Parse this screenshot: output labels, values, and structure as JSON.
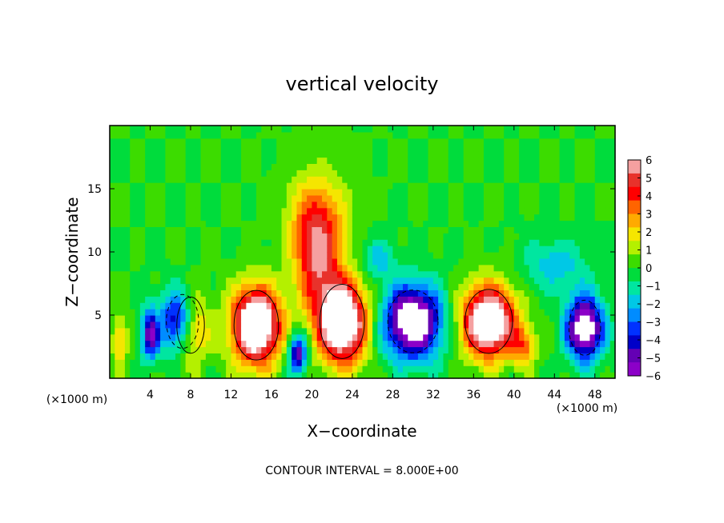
{
  "chart_data": {
    "type": "heatmap",
    "title": "vertical velocity",
    "xlabel": "X−coordinate",
    "ylabel": "Z−coordinate",
    "x_unit_left": "(×1000 m)",
    "x_unit_right": "(×1000 m)",
    "footer": "CONTOUR INTERVAL = 8.000E+00",
    "xlim": [
      0,
      50
    ],
    "ylim": [
      0,
      20
    ],
    "xticks": [
      4,
      8,
      12,
      16,
      20,
      24,
      28,
      32,
      36,
      40,
      44,
      48
    ],
    "yticks": [
      5,
      10,
      15
    ],
    "colorbar": {
      "ticks": [
        "6",
        "5",
        "4",
        "3",
        "2",
        "1",
        "0",
        "−1",
        "−2",
        "−3",
        "−4",
        "−5",
        "−6"
      ],
      "range": [
        -6,
        6
      ],
      "colors": [
        "#f5a0a0",
        "#e8322b",
        "#ff0000",
        "#ff6400",
        "#ffaa00",
        "#f5e600",
        "#b4f000",
        "#3cdc00",
        "#00dc3c",
        "#00e6a0",
        "#00c8e6",
        "#008cff",
        "#0032ff",
        "#0000c8",
        "#6400b4",
        "#8c00c8"
      ]
    },
    "blobs": [
      {
        "x": 8.0,
        "z": 4.2,
        "value": 7.0,
        "sx": 1.6,
        "sz": 2.6
      },
      {
        "x": 4.0,
        "z": 3.5,
        "value": -5.0,
        "sx": 0.9,
        "sz": 2.0
      },
      {
        "x": 7.2,
        "z": 4.5,
        "value": -8.0,
        "sx": 1.8,
        "sz": 2.4
      },
      {
        "x": 14.5,
        "z": 4.2,
        "value": 9.0,
        "sx": 2.4,
        "sz": 3.0
      },
      {
        "x": 18.6,
        "z": 2.0,
        "value": -5.5,
        "sx": 0.9,
        "sz": 1.6
      },
      {
        "x": 23.0,
        "z": 4.5,
        "value": 9.0,
        "sx": 2.4,
        "sz": 3.2
      },
      {
        "x": 20.5,
        "z": 9.5,
        "value": 4.5,
        "sx": 2.2,
        "sz": 4.0
      },
      {
        "x": 20.5,
        "z": 13.0,
        "value": 2.5,
        "sx": 3.0,
        "sz": 3.5
      },
      {
        "x": 30.0,
        "z": 4.5,
        "value": -8.0,
        "sx": 2.8,
        "sz": 2.8
      },
      {
        "x": 37.5,
        "z": 4.5,
        "value": 8.5,
        "sx": 2.6,
        "sz": 2.8
      },
      {
        "x": 41.0,
        "z": 2.5,
        "value": 3.0,
        "sx": 1.2,
        "sz": 1.6
      },
      {
        "x": 47.0,
        "z": 4.0,
        "value": -7.5,
        "sx": 1.8,
        "sz": 2.5
      },
      {
        "x": 1.0,
        "z": 3.0,
        "value": 2.5,
        "sx": 0.8,
        "sz": 2.0
      },
      {
        "x": 44.0,
        "z": 9.0,
        "value": -2.0,
        "sx": 3.0,
        "sz": 2.0
      },
      {
        "x": 26.5,
        "z": 9.5,
        "value": -2.0,
        "sx": 1.6,
        "sz": 1.6
      }
    ]
  }
}
